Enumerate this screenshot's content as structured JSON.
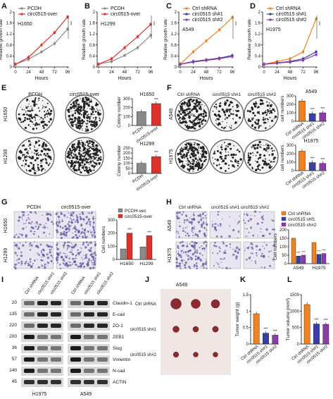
{
  "colors": {
    "ctrl": "#f0831f",
    "sh1": "#3a3fa6",
    "sh2": "#8a3da8",
    "pcdh": "#8a8a8a",
    "over": "#e0302a",
    "bar_dark": "#555555"
  },
  "panels": {
    "A": {
      "letter": "A",
      "cell": "H1650"
    },
    "B": {
      "letter": "B",
      "cell": "H1299"
    },
    "C": {
      "letter": "C",
      "cell": "A549"
    },
    "D": {
      "letter": "D",
      "cell": "H1975"
    },
    "E": {
      "letter": "E",
      "col1": "PCDH",
      "col2": "circ0515-over",
      "row1": "H1650",
      "row2": "H1299"
    },
    "F": {
      "letter": "F",
      "col1": "Ctrl shRNA",
      "col2": "circ0515 sh#1",
      "col3": "circ0515 sh#2",
      "row1": "A549",
      "row2": "H1975"
    },
    "G": {
      "letter": "G",
      "col1": "PCDH",
      "col2": "circ0515-over",
      "row1": "H1650",
      "row2": "H1299"
    },
    "H": {
      "letter": "H",
      "col1": "Ctrl shRNA",
      "col2": "circ0515 sh#1",
      "col3": "circ0515 sh#2",
      "row1": "A549",
      "row2": "H1975"
    },
    "I": {
      "letter": "I",
      "lanes": [
        "Ctrl shRNA",
        "circ0515 sh#1",
        "circ0515 sh#2"
      ],
      "cell1": "H1975",
      "cell2": "A549",
      "markers": [
        "20",
        "135",
        "220",
        "200",
        "36",
        "57",
        "140",
        "45"
      ],
      "proteins": [
        "Claudin-1",
        "E-cad",
        "ZO-1",
        "ZEB1",
        "Slug",
        "Vimentin",
        "N-cad",
        "ACTIN"
      ]
    },
    "J": {
      "letter": "J",
      "title": "A549",
      "rows": [
        "Ctrl shRNA",
        "circ0515 sh#1",
        "circ0515 sh#2"
      ]
    },
    "K": {
      "letter": "K"
    },
    "L": {
      "letter": "L"
    }
  },
  "legends": {
    "pcdh_over": [
      "PCDH",
      "circ0515-over"
    ],
    "sh": [
      "Ctrl shRNA",
      "circ0515 sh#1",
      "circ0515 sh#2"
    ],
    "pcdh_vec": [
      "PCDH-vec",
      "circ0515-over"
    ],
    "sh_h": [
      "Ctrl shRNA",
      "circ0515 shf1",
      "circ0515 sh#2"
    ]
  },
  "sig": "***",
  "chart_data": [
    {
      "id": "A",
      "type": "line",
      "xlabel": "Hours",
      "ylabel": "Relative growth rate",
      "x": [
        0,
        24,
        48,
        72,
        96
      ],
      "ylim": [
        0,
        2.0
      ],
      "yticks": [
        0,
        0.4,
        0.8,
        1.2,
        1.6,
        2.0
      ],
      "series": [
        {
          "name": "PCDH",
          "values": [
            0.1,
            0.28,
            0.55,
            0.85,
            1.38
          ]
        },
        {
          "name": "circ0515-over",
          "values": [
            0.1,
            0.35,
            0.8,
            1.25,
            1.82
          ]
        }
      ]
    },
    {
      "id": "B",
      "type": "line",
      "xlabel": "Hours",
      "ylabel": "Relative growth rate",
      "x": [
        0,
        24,
        48,
        72,
        96
      ],
      "ylim": [
        0,
        2.0
      ],
      "yticks": [
        0,
        0.4,
        0.8,
        1.2,
        1.6,
        2.0
      ],
      "series": [
        {
          "name": "PCDH",
          "values": [
            0.1,
            0.2,
            0.42,
            0.7,
            1.15
          ]
        },
        {
          "name": "circ0515-over",
          "values": [
            0.1,
            0.3,
            0.7,
            1.1,
            1.55
          ]
        }
      ]
    },
    {
      "id": "C",
      "type": "line",
      "xlabel": "Hours",
      "ylabel": "Relative growth rate",
      "x": [
        0,
        24,
        48,
        72,
        96
      ],
      "ylim": [
        0,
        2.0
      ],
      "yticks": [
        0,
        0.4,
        0.8,
        1.2,
        1.6,
        2.0
      ],
      "series": [
        {
          "name": "Ctrl shRNA",
          "values": [
            0.1,
            0.55,
            0.95,
            1.35,
            1.8
          ]
        },
        {
          "name": "circ0515 sh#1",
          "values": [
            0.1,
            0.2,
            0.26,
            0.32,
            0.42
          ]
        },
        {
          "name": "circ0515 sh#2",
          "values": [
            0.1,
            0.18,
            0.24,
            0.3,
            0.38
          ]
        }
      ]
    },
    {
      "id": "D",
      "type": "line",
      "xlabel": "Hours",
      "ylabel": "Relative growth rate",
      "x": [
        0,
        24,
        48,
        72,
        96
      ],
      "ylim": [
        0,
        2.0
      ],
      "yticks": [
        0,
        0.4,
        0.8,
        1.2,
        1.6,
        2.0
      ],
      "series": [
        {
          "name": "Ctrl shRNA",
          "values": [
            0.1,
            0.2,
            0.3,
            0.55,
            1.75
          ]
        },
        {
          "name": "circ0515 sh#1",
          "values": [
            0.1,
            0.15,
            0.2,
            0.3,
            0.55
          ]
        },
        {
          "name": "circ0515 sh#2",
          "values": [
            0.1,
            0.14,
            0.18,
            0.25,
            0.45
          ]
        }
      ]
    },
    {
      "id": "E1",
      "type": "bar",
      "title": "H1650",
      "ylabel": "Colony number",
      "categories": [
        "PCDH",
        "circ0515-over"
      ],
      "values": [
        155,
        245
      ],
      "ylim": [
        0,
        300
      ],
      "yticks": [
        0,
        100,
        200,
        300
      ]
    },
    {
      "id": "E2",
      "type": "bar",
      "title": "H1299",
      "ylabel": "Colony number",
      "categories": [
        "PCDH",
        "circ0515-over"
      ],
      "values": [
        100,
        165
      ],
      "ylim": [
        0,
        250
      ],
      "yticks": [
        0,
        50,
        100,
        150,
        200,
        250
      ]
    },
    {
      "id": "F1",
      "type": "bar",
      "title": "A549",
      "ylabel": "cell numbers",
      "categories": [
        "Ctrl shRNA",
        "circ0515 sh#1",
        "circ0515 sh#2"
      ],
      "values": [
        240,
        90,
        100
      ],
      "ylim": [
        0,
        300
      ],
      "yticks": [
        0,
        100,
        200,
        300
      ]
    },
    {
      "id": "F2",
      "type": "bar",
      "title": "H1975",
      "ylabel": "cell numbers",
      "categories": [
        "Ctrl shRNA",
        "circ0515 sh#1",
        "circ0515 sh#2"
      ],
      "values": [
        230,
        95,
        85
      ],
      "ylim": [
        0,
        300
      ],
      "yticks": [
        0,
        100,
        200,
        300
      ]
    },
    {
      "id": "G",
      "type": "bar",
      "ylabel": "Cell numbers",
      "categories": [
        "H1650",
        "H1299"
      ],
      "ylim": [
        0,
        300
      ],
      "yticks": [
        0,
        100,
        200,
        300
      ],
      "series": [
        {
          "name": "PCDH-vec",
          "values": [
            80,
            95
          ]
        },
        {
          "name": "circ0515-over",
          "values": [
            200,
            180
          ]
        }
      ]
    },
    {
      "id": "H",
      "type": "bar",
      "ylabel": "Cell numbers",
      "categories": [
        "A549",
        "H1975"
      ],
      "ylim": [
        0,
        200
      ],
      "yticks": [
        0,
        50,
        100,
        150,
        200
      ],
      "series": [
        {
          "name": "Ctrl shRNA",
          "values": [
            150,
            125
          ]
        },
        {
          "name": "circ0515 shf1",
          "values": [
            45,
            55
          ]
        },
        {
          "name": "circ0515 sh#2",
          "values": [
            50,
            60
          ]
        }
      ]
    },
    {
      "id": "K",
      "type": "bar",
      "ylabel": "Tumor weight (g)",
      "categories": [
        "Ctrl shRNA",
        "circ0515 sh#1",
        "circ0515 sh#2"
      ],
      "values": [
        0.92,
        0.33,
        0.27
      ],
      "ylim": [
        0,
        1.5
      ],
      "yticks": [
        0,
        0.5,
        1.0,
        1.5
      ]
    },
    {
      "id": "L",
      "type": "bar",
      "ylabel": "Tumor volume (mm³)",
      "categories": [
        "Ctrl shRNA",
        "circ0515 sh#1",
        "circ0515 sh#2"
      ],
      "values": [
        1200,
        610,
        600
      ],
      "ylim": [
        0,
        1500
      ],
      "yticks": [
        0,
        500,
        1000,
        1500
      ]
    }
  ]
}
